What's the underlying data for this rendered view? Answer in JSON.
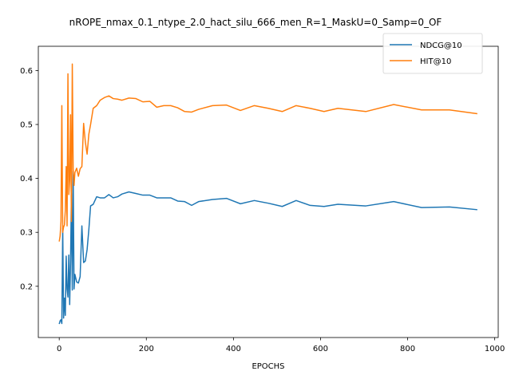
{
  "chart_data": {
    "type": "line",
    "title": "nROPE_nmax_0.1_ntype_2.0_hact_silu_666_men_R=1_MaskU=0_Samp=0_OF",
    "xlabel": "EPOCHS",
    "ylabel": "",
    "xlim": [
      -48,
      1008
    ],
    "ylim": [
      0.105,
      0.645
    ],
    "xticks": [
      0,
      200,
      400,
      600,
      800,
      1000
    ],
    "yticks": [
      0.2,
      0.3,
      0.4,
      0.5,
      0.6
    ],
    "xtick_labels": [
      "0",
      "200",
      "400",
      "600",
      "800",
      "1000"
    ],
    "ytick_labels": [
      "0.2",
      "0.3",
      "0.4",
      "0.5",
      "0.6"
    ],
    "grid": false,
    "legend_position": "upper right",
    "series": [
      {
        "name": "NDCG@10",
        "color": "#1f77b4",
        "x": [
          0,
          2,
          4,
          6,
          8,
          10,
          12,
          14,
          16,
          18,
          20,
          22,
          24,
          26,
          28,
          30,
          32,
          34,
          36,
          40,
          44,
          48,
          52,
          56,
          60,
          64,
          68,
          72,
          78,
          86,
          94,
          104,
          114,
          124,
          134,
          144,
          160,
          176,
          192,
          208,
          224,
          240,
          256,
          272,
          288,
          304,
          320,
          352,
          384,
          416,
          448,
          480,
          512,
          544,
          576,
          608,
          640,
          704,
          768,
          832,
          896,
          960
        ],
        "y": [
          0.13,
          0.136,
          0.138,
          0.131,
          0.308,
          0.141,
          0.178,
          0.146,
          0.256,
          0.195,
          0.18,
          0.258,
          0.166,
          0.245,
          0.372,
          0.193,
          0.414,
          0.195,
          0.222,
          0.208,
          0.206,
          0.218,
          0.312,
          0.244,
          0.247,
          0.268,
          0.305,
          0.349,
          0.352,
          0.366,
          0.364,
          0.364,
          0.37,
          0.364,
          0.366,
          0.371,
          0.375,
          0.372,
          0.369,
          0.369,
          0.364,
          0.364,
          0.364,
          0.358,
          0.357,
          0.35,
          0.357,
          0.361,
          0.363,
          0.353,
          0.359,
          0.354,
          0.348,
          0.359,
          0.35,
          0.348,
          0.352,
          0.349,
          0.357,
          0.346,
          0.347,
          0.342
        ]
      },
      {
        "name": "HIT@10",
        "color": "#ff7f0e",
        "x": [
          0,
          2,
          4,
          6,
          8,
          10,
          12,
          14,
          16,
          18,
          20,
          22,
          24,
          26,
          28,
          30,
          32,
          34,
          36,
          40,
          44,
          48,
          52,
          56,
          60,
          64,
          68,
          72,
          78,
          86,
          94,
          104,
          114,
          124,
          134,
          144,
          160,
          176,
          192,
          208,
          224,
          240,
          256,
          272,
          288,
          304,
          320,
          352,
          384,
          416,
          448,
          480,
          512,
          544,
          576,
          608,
          640,
          704,
          768,
          832,
          896,
          960
        ],
        "y": [
          0.283,
          0.293,
          0.32,
          0.535,
          0.3,
          0.31,
          0.314,
          0.341,
          0.422,
          0.312,
          0.594,
          0.37,
          0.397,
          0.518,
          0.32,
          0.612,
          0.417,
          0.387,
          0.411,
          0.419,
          0.404,
          0.418,
          0.422,
          0.502,
          0.467,
          0.445,
          0.482,
          0.5,
          0.53,
          0.535,
          0.545,
          0.55,
          0.553,
          0.548,
          0.547,
          0.545,
          0.549,
          0.548,
          0.542,
          0.543,
          0.532,
          0.535,
          0.535,
          0.531,
          0.524,
          0.523,
          0.528,
          0.535,
          0.536,
          0.526,
          0.535,
          0.53,
          0.524,
          0.535,
          0.53,
          0.524,
          0.53,
          0.524,
          0.537,
          0.527,
          0.527,
          0.52
        ]
      }
    ]
  }
}
